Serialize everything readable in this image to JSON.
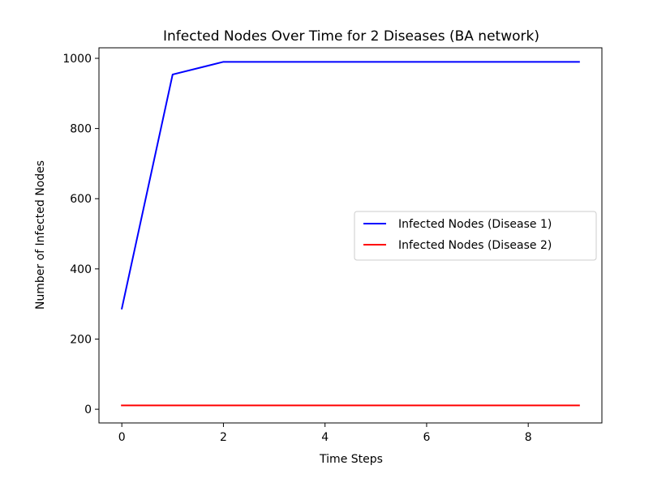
{
  "chart_data": {
    "type": "line",
    "title": "Infected Nodes Over Time for 2 Diseases (BA network)",
    "xlabel": "Time Steps",
    "ylabel": "Number of Infected Nodes",
    "x": [
      0,
      1,
      2,
      3,
      4,
      5,
      6,
      7,
      8,
      9
    ],
    "xlim": [
      -0.45,
      9.45
    ],
    "ylim": [
      -39,
      1030
    ],
    "xticks": [
      0,
      2,
      4,
      6,
      8
    ],
    "yticks": [
      0,
      200,
      400,
      600,
      800,
      1000
    ],
    "grid": false,
    "legend_position": "center-right",
    "series": [
      {
        "name": "Infected Nodes (Disease 1)",
        "color": "#0000ff",
        "values": [
          287,
          954,
          990,
          990,
          990,
          990,
          990,
          990,
          990,
          990
        ]
      },
      {
        "name": "Infected Nodes (Disease 2)",
        "color": "#ff0000",
        "values": [
          11,
          11,
          11,
          11,
          11,
          11,
          11,
          11,
          11,
          11
        ]
      }
    ]
  }
}
